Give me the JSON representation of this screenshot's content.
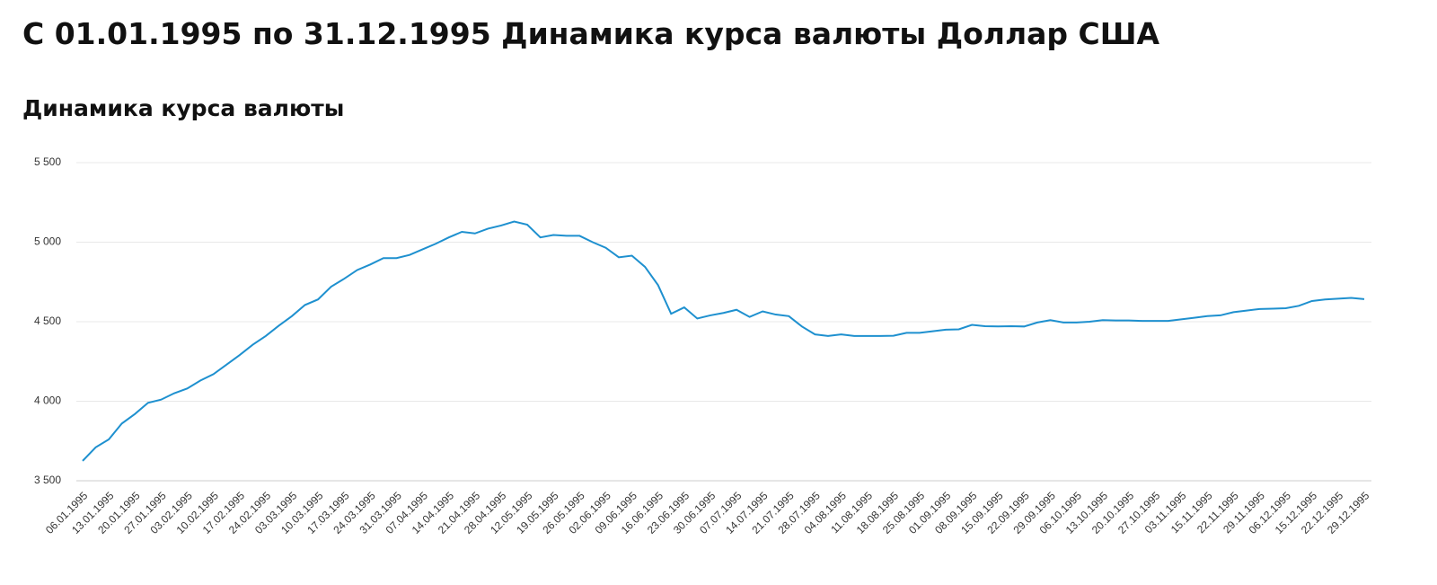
{
  "chart_data": {
    "type": "line",
    "title": "С 01.01.1995 по 31.12.1995 Динамика курса валюты Доллар США",
    "subtitle": "Динамика курса валюты",
    "categories": [
      "06.01.1995",
      null,
      "13.01.1995",
      null,
      "20.01.1995",
      null,
      "27.01.1995",
      null,
      "03.02.1995",
      null,
      "10.02.1995",
      null,
      "17.02.1995",
      null,
      "24.02.1995",
      null,
      "03.03.1995",
      null,
      "10.03.1995",
      null,
      "17.03.1995",
      null,
      "24.03.1995",
      null,
      "31.03.1995",
      null,
      "07.04.1995",
      null,
      "14.04.1995",
      null,
      "21.04.1995",
      null,
      "28.04.1995",
      null,
      "12.05.1995",
      null,
      "19.05.1995",
      null,
      "26.05.1995",
      null,
      "02.06.1995",
      null,
      "09.06.1995",
      null,
      "16.06.1995",
      null,
      "23.06.1995",
      null,
      "30.06.1995",
      null,
      "07.07.1995",
      null,
      "14.07.1995",
      null,
      "21.07.1995",
      null,
      "28.07.1995",
      null,
      "04.08.1995",
      null,
      "11.08.1995",
      null,
      "18.08.1995",
      null,
      "25.08.1995",
      null,
      "01.09.1995",
      null,
      "08.09.1995",
      null,
      "15.09.1995",
      null,
      "22.09.1995",
      null,
      "29.09.1995",
      null,
      "06.10.1995",
      null,
      "13.10.1995",
      null,
      "20.10.1995",
      null,
      "27.10.1995",
      null,
      "03.11.1995",
      null,
      "15.11.1995",
      null,
      "22.11.1995",
      null,
      "29.11.1995",
      null,
      "06.12.1995",
      null,
      "15.12.1995",
      null,
      "22.12.1995",
      null,
      "29.12.1995"
    ],
    "series": [
      {
        "color": "#1e90cf",
        "values": [
          3625,
          3710,
          3760,
          3860,
          3920,
          3990,
          4010,
          4050,
          4080,
          4130,
          4170,
          4230,
          4290,
          4355,
          4410,
          4475,
          4535,
          4605,
          4640,
          4720,
          4770,
          4825,
          4860,
          4900,
          4900,
          4920,
          4955,
          4990,
          5030,
          5065,
          5055,
          5085,
          5105,
          5130,
          5110,
          5030,
          5045,
          5040,
          5040,
          5000,
          4965,
          4905,
          4915,
          4845,
          4730,
          4550,
          4590,
          4520,
          4540,
          4555,
          4575,
          4530,
          4565,
          4545,
          4535,
          4470,
          4420,
          4410,
          4420,
          4410,
          4410,
          4410,
          4412,
          4430,
          4430,
          4440,
          4450,
          4452,
          4480,
          4472,
          4470,
          4472,
          4470,
          4495,
          4510,
          4495,
          4495,
          4500,
          4510,
          4508,
          4508,
          4505,
          4505,
          4505,
          4515,
          4525,
          4535,
          4540,
          4560,
          4570,
          4580,
          4582,
          4585,
          4600,
          4630,
          4640,
          4645,
          4650,
          4642
        ]
      }
    ],
    "ylim": [
      3500,
      5500
    ],
    "yticks": [
      {
        "value": 3500,
        "label": "3 500"
      },
      {
        "value": 4000,
        "label": "4 000"
      },
      {
        "value": 4500,
        "label": "4 500"
      },
      {
        "value": 5000,
        "label": "5 000"
      },
      {
        "value": 5500,
        "label": "5 500"
      }
    ],
    "grid": true
  }
}
